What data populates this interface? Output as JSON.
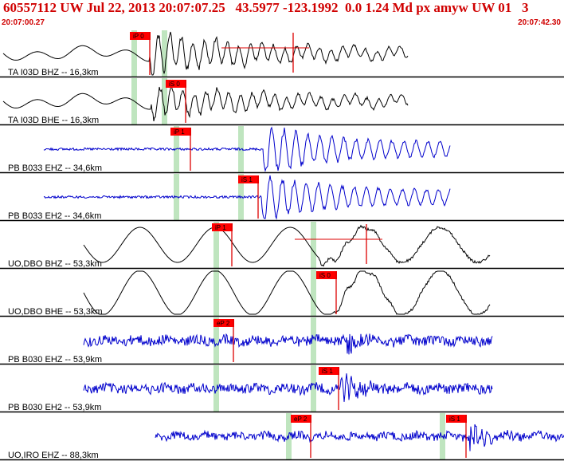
{
  "header": {
    "title": "60557112 UW Jul 22, 2013 20:07:07.25   43.5977 -123.1992  0.0 1.24 Md px amyw UW 01   3",
    "time_start": "20:07:00.27",
    "time_end": "20:07:42.30"
  },
  "colors": {
    "header_text": "#d00000",
    "pick_box": "#ff0000",
    "pick_line": "#dd0000",
    "highlight_band": "#bfe5bf",
    "trace_blue": "#0000cc",
    "trace_black": "#000000",
    "divider": "#000000"
  },
  "traces": [
    {
      "label": "TA I03D BHZ -- 16,3km",
      "color": "black",
      "style": "broadband",
      "bands": [
        168,
        206
      ],
      "picks": [
        {
          "text": "iP 0",
          "x": 163
        }
      ],
      "start": 4,
      "end": 512,
      "onset": 188,
      "amp": 24,
      "extra_pick": {
        "x": 368
      }
    },
    {
      "label": "TA I03D BHE -- 16,3km",
      "color": "black",
      "style": "broadband",
      "bands": [
        168,
        206
      ],
      "picks": [
        {
          "text": "iS 0",
          "x": 208
        }
      ],
      "start": 4,
      "end": 512,
      "onset": 190,
      "amp": 18
    },
    {
      "label": "PB B033 EHZ -- 34,6km",
      "color": "blue",
      "style": "onset",
      "bands": [
        221,
        302
      ],
      "picks": [
        {
          "text": "iP 1",
          "x": 214
        }
      ],
      "start": 55,
      "end": 565,
      "onset": 330,
      "amp": 26
    },
    {
      "label": "PB B033 EH2 -- 34,6km",
      "color": "blue",
      "style": "onset",
      "bands": [
        221,
        302
      ],
      "picks": [
        {
          "text": "iS 1",
          "x": 299
        }
      ],
      "start": 55,
      "end": 565,
      "onset": 328,
      "amp": 24
    },
    {
      "label": "UO,DBO BHZ -- 53,3km",
      "color": "black",
      "style": "longperiod",
      "bands": [
        271,
        393
      ],
      "picks": [
        {
          "text": "iP 1",
          "x": 266
        }
      ],
      "start": 105,
      "end": 615,
      "onset": 400,
      "amp": 22,
      "extra_pick": {
        "x": 460
      }
    },
    {
      "label": "UO,DBO BHE -- 53,3km",
      "color": "black",
      "style": "longperiod",
      "bands": [
        271,
        393
      ],
      "picks": [
        {
          "text": "iS 0",
          "x": 397
        }
      ],
      "start": 105,
      "end": 615,
      "onset": 420,
      "amp": 28
    },
    {
      "label": "PB B030 EHZ -- 53,9km",
      "color": "blue",
      "style": "noisy",
      "bands": [
        271,
        393
      ],
      "picks": [
        {
          "text": "eP 2",
          "x": 268
        }
      ],
      "start": 105,
      "end": 618,
      "onset": 435,
      "amp": 12
    },
    {
      "label": "PB B030 EH2 -- 53,9km",
      "color": "blue",
      "style": "noisy",
      "bands": [
        271,
        393
      ],
      "picks": [
        {
          "text": "iS 1",
          "x": 400
        }
      ],
      "start": 105,
      "end": 618,
      "onset": 428,
      "amp": 12
    },
    {
      "label": "UO,IRO EHZ -- 88,3km",
      "color": "blue",
      "style": "noisy",
      "bands": [
        362,
        555
      ],
      "picks": [
        {
          "text": "eP 2",
          "x": 365
        },
        {
          "text": "iS 1",
          "x": 560
        }
      ],
      "start": 195,
      "end": 708,
      "onset": 590,
      "amp": 10
    }
  ]
}
